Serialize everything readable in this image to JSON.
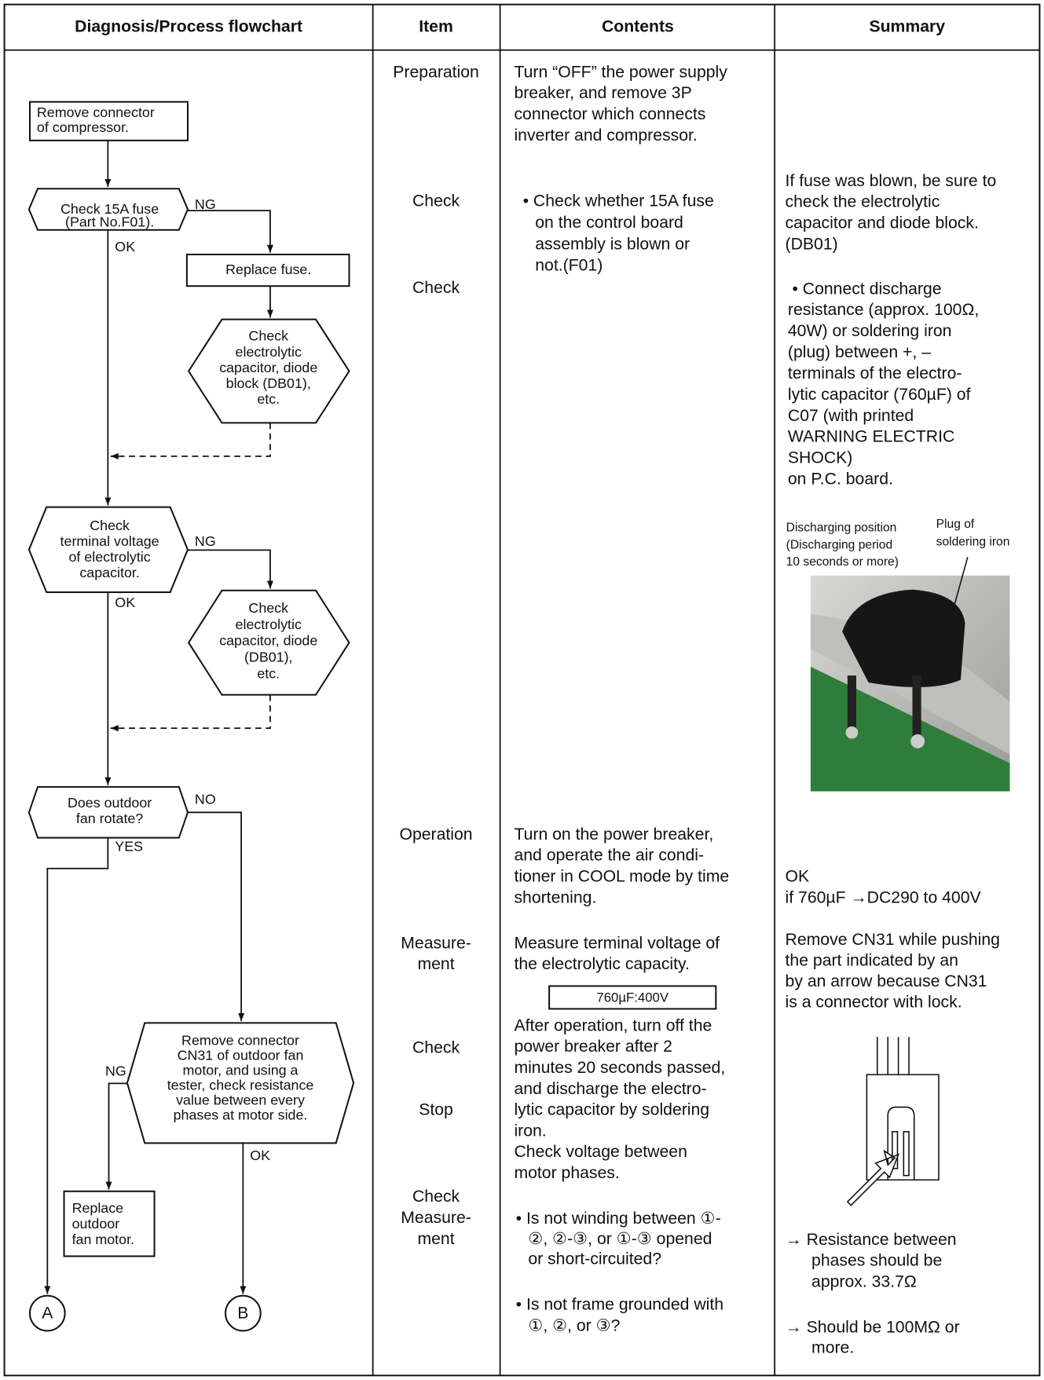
{
  "header": {
    "columns": [
      "Diagnosis/Process flowchart",
      "Item",
      "Contents",
      "Summary"
    ]
  },
  "flowchart": {
    "nodes": [
      {
        "lines": [
          "Remove connector",
          "of compressor."
        ]
      },
      {
        "lines": [
          "Check 15A fuse",
          "(Part No.F01)."
        ]
      },
      {
        "lines": [
          "Replace fuse."
        ]
      },
      {
        "lines": [
          "Check",
          "electrolytic",
          "capacitor, diode",
          "block (DB01),",
          "etc."
        ]
      },
      {
        "lines": [
          "Check",
          "terminal voltage",
          "of electrolytic",
          "capacitor."
        ]
      },
      {
        "lines": [
          "Check",
          "electrolytic",
          "capacitor, diode",
          "(DB01),",
          "etc."
        ]
      },
      {
        "lines": [
          "Does outdoor",
          "fan rotate?"
        ]
      },
      {
        "lines": [
          "Remove connector",
          "CN31 of outdoor fan",
          "motor, and using a",
          "tester, check resistance",
          "value between every",
          "phases at motor side."
        ]
      },
      {
        "lines": [
          "Replace",
          "outdoor",
          "fan motor."
        ]
      }
    ],
    "edge_labels": [
      "NG",
      "OK",
      "NG",
      "OK",
      "NO",
      "YES",
      "NG",
      "OK"
    ],
    "connectors": [
      "A",
      "B"
    ]
  },
  "items": [
    [
      "Preparation"
    ],
    [
      "Check"
    ],
    [
      "Check"
    ],
    [
      "Operation"
    ],
    [
      "Measure-",
      "ment"
    ],
    [
      "Check"
    ],
    [
      "Stop"
    ],
    [
      "Check"
    ],
    [
      "Measure-",
      "ment"
    ]
  ],
  "contents": {
    "preparation": [
      "Turn “OFF” the power supply",
      "breaker, and remove 3P",
      "connector which connects",
      "inverter and compressor."
    ],
    "fuse_check": [
      "• Check whether 15A fuse",
      "on the control board",
      "assembly is blown or",
      "not.(F01)"
    ],
    "operation": [
      "Turn on the power breaker,",
      "and operate the air condi-",
      "tioner in COOL mode by time",
      "shortening."
    ],
    "measurement": [
      "Measure terminal voltage of",
      "the electrolytic capacity."
    ],
    "voltage_box": "760µF:400V",
    "after_operation": [
      "After operation, turn off the",
      "power breaker after 2",
      "minutes 20 seconds passed,",
      "and discharge the electro-",
      "lytic capacitor by soldering",
      "iron.",
      "Check voltage between",
      "motor phases."
    ],
    "winding": [
      "• Is not winding between ①-",
      "②, ②-③, or ①-③ opened",
      "or short-circuited?"
    ],
    "ground": [
      "• Is not frame grounded with",
      "①, ②, or ③?"
    ]
  },
  "summary": {
    "fuse": [
      "If fuse was blown, be sure to",
      "check the electrolytic",
      "capacitor and diode block.",
      "(DB01)"
    ],
    "discharge": [
      "• Connect discharge",
      "resistance (approx. 100Ω,",
      "40W) or soldering iron",
      "(plug) between +, –",
      "terminals of the electro-",
      "lytic capacitor (760µF) of",
      "C07 (with printed",
      "WARNING ELECTRIC",
      "SHOCK)",
      "on P.C. board."
    ],
    "photo_label_left": [
      "Discharging position",
      "(Discharging period",
      "10 seconds or more)"
    ],
    "photo_label_right": [
      "Plug of",
      "soldering iron"
    ],
    "ok": [
      "OK",
      "if 760µF →DC290 to 400V"
    ],
    "cn31": [
      "Remove CN31 while pushing",
      "the part indicated by an",
      "by an arrow because CN31",
      "is a connector with lock."
    ],
    "resistance": [
      "→ Resistance between",
      "phases should be",
      "approx. 33.7Ω"
    ],
    "insulation": [
      "→ Should be 100MΩ or",
      "more."
    ]
  }
}
